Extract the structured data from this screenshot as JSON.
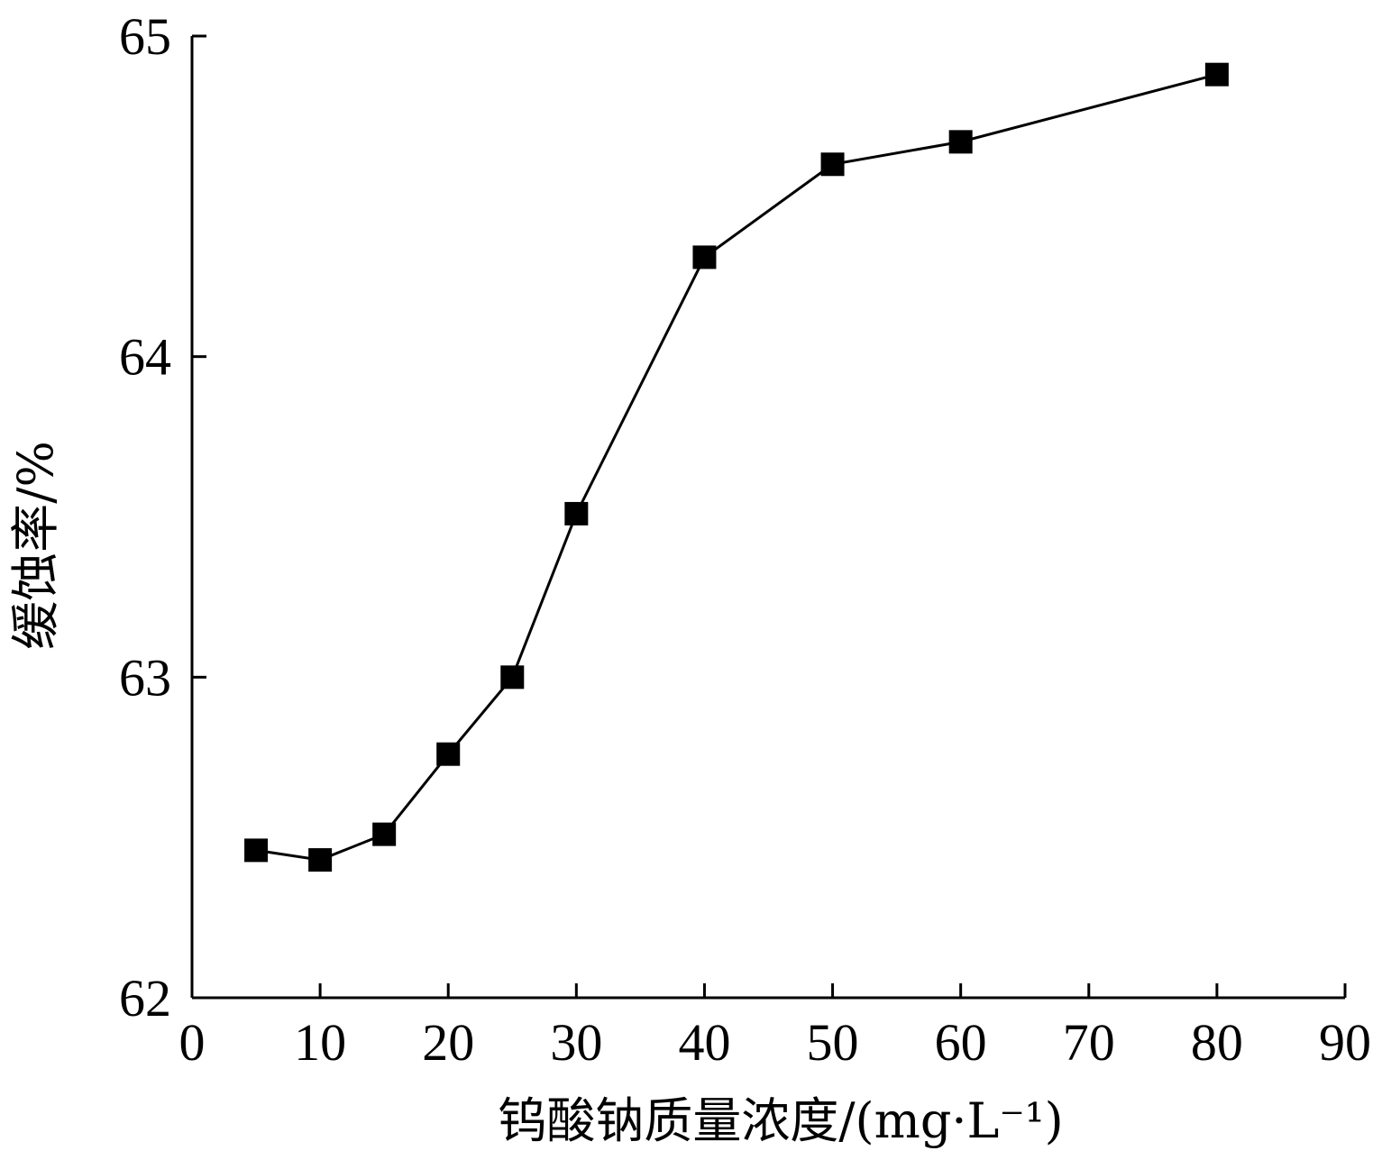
{
  "chart_data": {
    "type": "line",
    "xlabel": "钨酸钠质量浓度/(mg·L⁻¹)",
    "ylabel": "缓蚀率/%",
    "xlim": [
      0,
      90
    ],
    "ylim": [
      62,
      65
    ],
    "xticks": [
      0,
      10,
      20,
      30,
      40,
      50,
      60,
      70,
      80,
      90
    ],
    "yticks": [
      62,
      63,
      64,
      65
    ],
    "grid": false,
    "series": [
      {
        "marker": "square",
        "color": "#000000",
        "x": [
          5,
          10,
          15,
          20,
          25,
          30,
          40,
          50,
          60,
          80
        ],
        "y": [
          62.46,
          62.43,
          62.51,
          62.76,
          63.0,
          63.51,
          64.31,
          64.6,
          64.67,
          64.88
        ]
      }
    ]
  }
}
